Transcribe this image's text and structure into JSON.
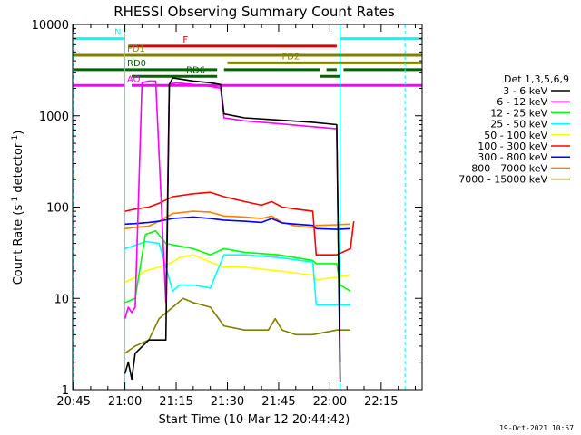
{
  "chart_data": {
    "type": "line",
    "title": "RHESSI Observing Summary Count Rates",
    "xlabel": "Start Time (10-Mar-12 20:44:42)",
    "ylabel_main": "Count Rate (s",
    "ylabel_sup1": "-1",
    "ylabel_mid": " detector",
    "ylabel_sup2": "-1",
    "ylabel_end": ")",
    "y_scale": "log",
    "xlim": [
      "20:44:42",
      "22:27:00"
    ],
    "ylim": [
      1,
      10000
    ],
    "x_ticks": [
      "20:45",
      "21:00",
      "21:15",
      "21:30",
      "21:45",
      "22:00",
      "22:15"
    ],
    "y_ticks": [
      "1",
      "10",
      "100",
      "1000",
      "10000"
    ],
    "legend": {
      "title": "Det 1,3,5,6,9",
      "placement": "right",
      "entries": [
        {
          "label": "3 - 6 keV",
          "color": "#000000"
        },
        {
          "label": "6 - 12 keV",
          "color": "#ff00ff"
        },
        {
          "label": "12 - 25 keV",
          "color": "#00ff00"
        },
        {
          "label": "25 - 50 keV",
          "color": "#00ffff"
        },
        {
          "label": "50 - 100 keV",
          "color": "#ffff00"
        },
        {
          "label": "100 - 300 keV",
          "color": "#ff0000"
        },
        {
          "label": "300 - 800 keV",
          "color": "#0000ff"
        },
        {
          "label": "800 - 7000 keV",
          "color": "#ff8000"
        },
        {
          "label": "7000 - 15000 keV",
          "color": "#808000"
        }
      ]
    },
    "series": [
      {
        "name": "3 - 6 keV",
        "color": "#000000",
        "x": [
          "21:00",
          "21:01",
          "21:02",
          "21:03",
          "21:07",
          "21:12",
          "21:13",
          "21:14",
          "21:17",
          "21:20",
          "21:25",
          "21:28",
          "21:29",
          "21:35",
          "21:45",
          "21:55",
          "22:02",
          "22:03"
        ],
        "y": [
          1.5,
          2,
          1.3,
          2.5,
          3.5,
          3.5,
          2200,
          2600,
          2500,
          2400,
          2300,
          2200,
          1050,
          950,
          900,
          850,
          800,
          1.2
        ]
      },
      {
        "name": "6 - 12 keV",
        "color": "#ff00ff",
        "x": [
          "21:00",
          "21:01",
          "21:02",
          "21:03",
          "21:05",
          "21:07",
          "21:09",
          "21:12",
          "21:13",
          "21:15",
          "21:20",
          "21:25",
          "21:28",
          "21:29",
          "21:35",
          "21:45",
          "21:55",
          "22:02",
          "22:03"
        ],
        "y": [
          6,
          8,
          7,
          8,
          2300,
          2400,
          2400,
          9,
          2200,
          2300,
          2200,
          2100,
          2000,
          950,
          880,
          820,
          760,
          720,
          2
        ]
      },
      {
        "name": "12 - 25 keV",
        "color": "#00ff00",
        "x": [
          "21:00",
          "21:03",
          "21:06",
          "21:09",
          "21:12",
          "21:15",
          "21:20",
          "21:25",
          "21:29",
          "21:35",
          "21:45",
          "21:55",
          "21:56",
          "22:02",
          "22:03",
          "22:06"
        ],
        "y": [
          9,
          10,
          50,
          55,
          40,
          38,
          35,
          30,
          35,
          32,
          30,
          26,
          24,
          24,
          14,
          12
        ]
      },
      {
        "name": "25 - 50 keV",
        "color": "#00ffff",
        "x": [
          "21:00",
          "21:03",
          "21:06",
          "21:10",
          "21:14",
          "21:16",
          "21:20",
          "21:25",
          "21:29",
          "21:35",
          "21:45",
          "21:55",
          "21:56",
          "22:02",
          "22:03",
          "22:06"
        ],
        "y": [
          35,
          38,
          42,
          40,
          12,
          14,
          14,
          13,
          30,
          30,
          28,
          25,
          8.5,
          8.5,
          8.5,
          8.5
        ]
      },
      {
        "name": "50 - 100 keV",
        "color": "#ffff00",
        "x": [
          "21:00",
          "21:03",
          "21:06",
          "21:10",
          "21:14",
          "21:16",
          "21:20",
          "21:25",
          "21:29",
          "21:35",
          "21:45",
          "21:55",
          "21:56",
          "22:02",
          "22:06"
        ],
        "y": [
          15,
          17,
          20,
          22,
          25,
          28,
          30,
          25,
          22,
          22,
          20,
          18,
          16,
          17,
          18
        ]
      },
      {
        "name": "100 - 300 keV",
        "color": "#ff0000",
        "x": [
          "21:00",
          "21:03",
          "21:07",
          "21:10",
          "21:14",
          "21:20",
          "21:25",
          "21:29",
          "21:35",
          "21:40",
          "21:43",
          "21:46",
          "21:50",
          "21:55",
          "21:56",
          "22:02",
          "22:06",
          "22:07"
        ],
        "y": [
          90,
          95,
          100,
          110,
          130,
          140,
          145,
          130,
          115,
          105,
          115,
          100,
          95,
          90,
          30,
          30,
          35,
          70
        ]
      },
      {
        "name": "300 - 800 keV",
        "color": "#0000ff",
        "x": [
          "21:00",
          "21:03",
          "21:07",
          "21:10",
          "21:14",
          "21:20",
          "21:25",
          "21:29",
          "21:35",
          "21:40",
          "21:43",
          "21:46",
          "21:50",
          "21:55",
          "21:56",
          "22:02",
          "22:06"
        ],
        "y": [
          65,
          66,
          68,
          70,
          75,
          78,
          75,
          72,
          70,
          68,
          75,
          67,
          65,
          63,
          58,
          57,
          58
        ]
      },
      {
        "name": "800 - 7000 keV",
        "color": "#ff8000",
        "x": [
          "21:00",
          "21:03",
          "21:07",
          "21:10",
          "21:14",
          "21:20",
          "21:25",
          "21:29",
          "21:35",
          "21:40",
          "21:43",
          "21:46",
          "21:50",
          "21:55",
          "21:56",
          "22:02",
          "22:06"
        ],
        "y": [
          58,
          60,
          62,
          70,
          85,
          90,
          88,
          80,
          78,
          75,
          80,
          68,
          62,
          60,
          63,
          64,
          65
        ]
      },
      {
        "name": "7000 - 15000 keV",
        "color": "#808000",
        "x": [
          "21:00",
          "21:03",
          "21:07",
          "21:10",
          "21:14",
          "21:17",
          "21:20",
          "21:25",
          "21:29",
          "21:35",
          "21:42",
          "21:44",
          "21:46",
          "21:50",
          "21:55",
          "22:02",
          "22:06"
        ],
        "y": [
          2.5,
          3,
          3.5,
          6,
          8,
          10,
          9,
          8,
          5,
          4.5,
          4.5,
          6,
          4.5,
          4,
          4,
          4.5,
          4.5
        ]
      }
    ],
    "flags": [
      {
        "label": "N",
        "color": "#00ffff",
        "level": 7000,
        "segments": [
          [
            "20:44:42",
            "21:00"
          ],
          [
            "22:03",
            "22:27"
          ]
        ]
      },
      {
        "label": "F",
        "color": "#dd0000",
        "level": 5800,
        "segments": [
          [
            "21:01",
            "22:02"
          ]
        ]
      },
      {
        "label": "FD1",
        "color": "#808000",
        "level": 4600,
        "segments": [
          [
            "20:44:42",
            "21:30"
          ],
          [
            "21:30",
            "22:27"
          ]
        ]
      },
      {
        "label": "FD2",
        "color": "#808000",
        "level": 3800,
        "segments": [
          [
            "21:30",
            "22:27"
          ]
        ]
      },
      {
        "label": "RD0",
        "color": "#006400",
        "level": 3200,
        "segments": [
          [
            "20:44:42",
            "21:27"
          ],
          [
            "21:29",
            "21:57"
          ],
          [
            "21:59",
            "22:02"
          ],
          [
            "22:04",
            "22:27"
          ]
        ]
      },
      {
        "label": "RD6",
        "color": "#006400",
        "level": 2700,
        "segments": [
          [
            "21:02",
            "21:27"
          ],
          [
            "21:57",
            "22:03"
          ]
        ]
      },
      {
        "label": "AO",
        "color": "#ff00ff",
        "level": 2150,
        "segments": [
          [
            "20:44:42",
            "21:00"
          ],
          [
            "21:02",
            "22:27"
          ]
        ]
      }
    ],
    "vlines": [
      {
        "at": "21:00",
        "color": "#00ffff",
        "style": "solid"
      },
      {
        "at": "22:03",
        "color": "#00ffff",
        "style": "solid"
      },
      {
        "at": "20:45",
        "color": "#00ffff",
        "style": "dashed"
      },
      {
        "at": "22:22",
        "color": "#00ffff",
        "style": "dashed"
      }
    ],
    "footer": "19-Oct-2021 10:57"
  }
}
